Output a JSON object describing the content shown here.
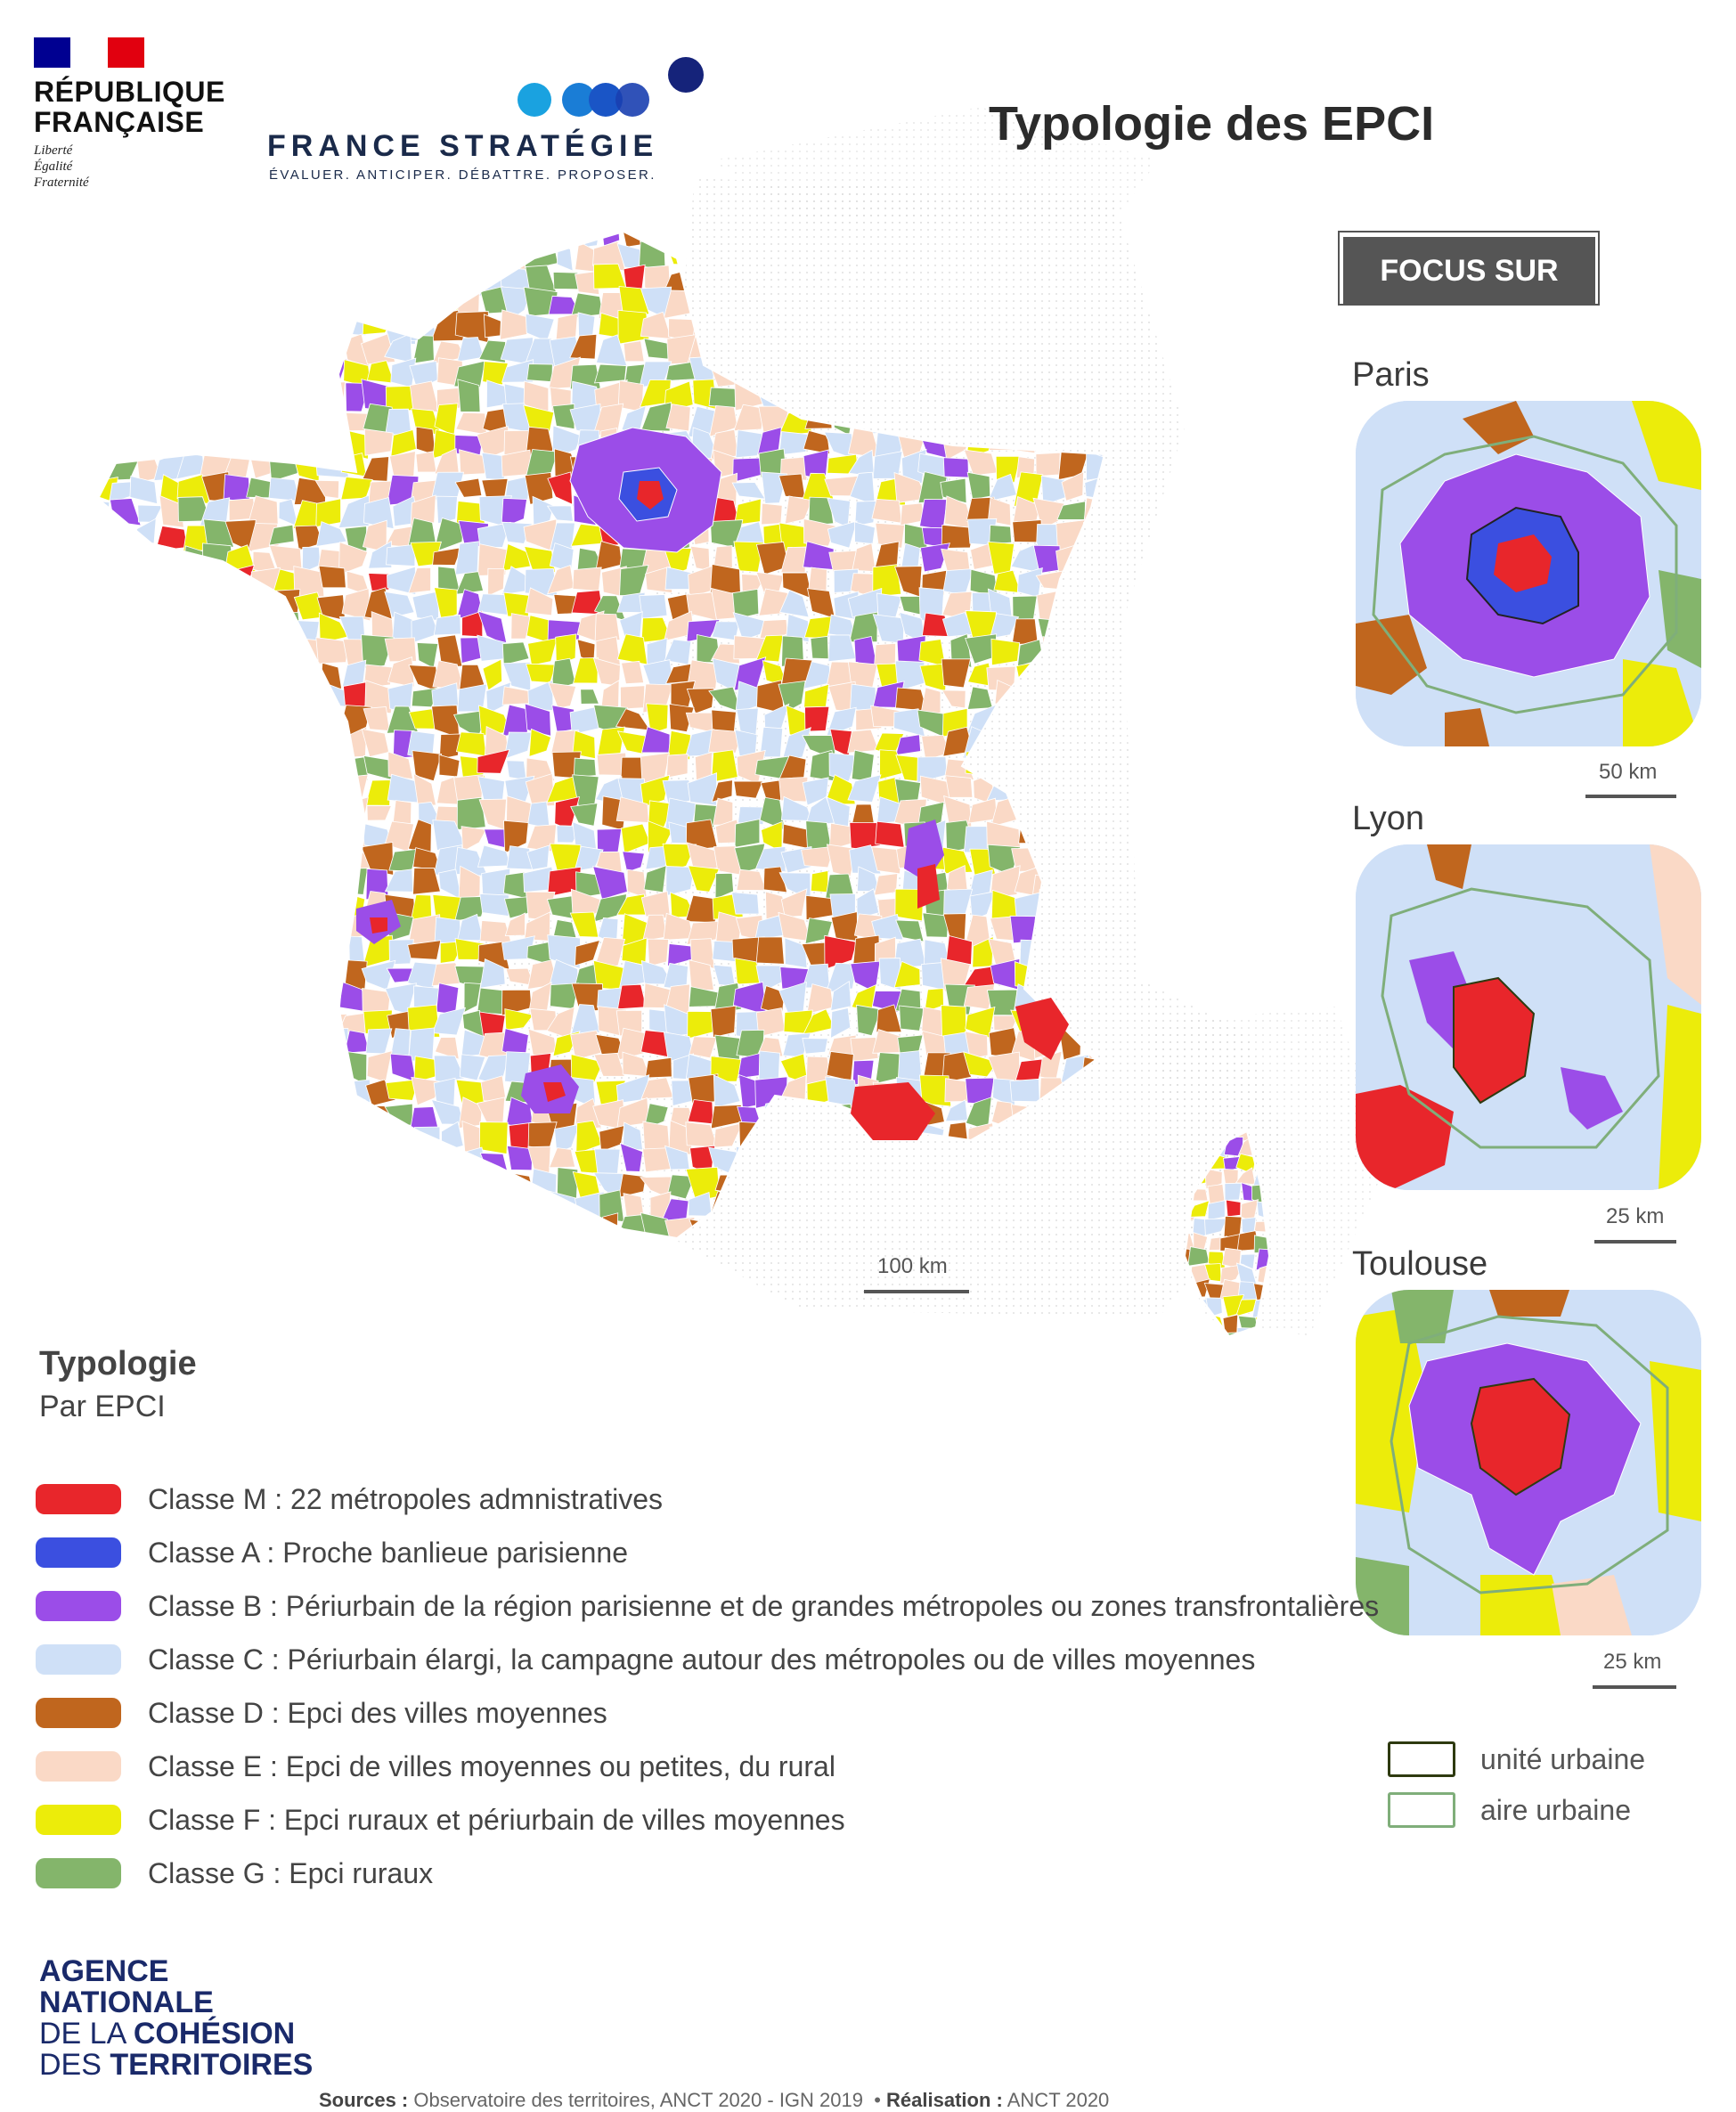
{
  "header": {
    "republique_line1": "RÉPUBLIQUE",
    "republique_line2": "FRANÇAISE",
    "motto": [
      "Liberté",
      "Égalité",
      "Fraternité"
    ],
    "france_strategie_name": "FRANCE STRATÉGIE",
    "france_strategie_tagline": "ÉVALUER. ANTICIPER. DÉBATTRE. PROPOSER."
  },
  "title": "Typologie des EPCI",
  "focus": {
    "label": "FOCUS SUR",
    "insets": [
      {
        "name": "Paris",
        "scale": "50 km"
      },
      {
        "name": "Lyon",
        "scale": "25 km"
      },
      {
        "name": "Toulouse",
        "scale": "25 km"
      }
    ]
  },
  "main_map": {
    "scale": "100 km"
  },
  "legend": {
    "title": "Typologie",
    "subtitle": "Par EPCI",
    "classes": [
      {
        "code": "Classe M",
        "label": "22 métropoles admnistratives",
        "color": "#e8262b"
      },
      {
        "code": "Classe A",
        "label": "Proche banlieue parisienne",
        "color": "#3b4fe0"
      },
      {
        "code": "Classe B",
        "label": "Périurbain de la région parisienne et de grandes métropoles ou zones transfrontalières",
        "color": "#9b4de8"
      },
      {
        "code": "Classe C",
        "label": "Périurbain élargi, la campagne autour des métropoles ou de villes moyennes",
        "color": "#cfe0f7"
      },
      {
        "code": "Classe D",
        "label": "Epci des villes moyennes",
        "color": "#c0661e"
      },
      {
        "code": "Classe E",
        "label": "Epci de villes moyennes ou petites, du rural",
        "color": "#fad9c6"
      },
      {
        "code": "Classe F",
        "label": "Epci ruraux et périurbain de villes moyennes",
        "color": "#ecec0a"
      },
      {
        "code": "Classe G",
        "label": "Epci ruraux",
        "color": "#84b56b"
      }
    ]
  },
  "urban_legend": [
    {
      "label": "unité urbaine",
      "color": "#2e3a10"
    },
    {
      "label": "aire urbaine",
      "color": "#7fae7a"
    }
  ],
  "footer": {
    "anct_line1": "AGENCE",
    "anct_line2": "NATIONALE",
    "anct_line3_a": "DE LA ",
    "anct_line3_b": "COHÉSION",
    "anct_line4_a": "DES ",
    "anct_line4_b": "TERRITOIRES",
    "sources_label": "Sources :",
    "sources_text": "Observatoire des territoires, ANCT 2020 - IGN 2019",
    "realisation_label": "Réalisation :",
    "realisation_text": "ANCT 2020"
  }
}
